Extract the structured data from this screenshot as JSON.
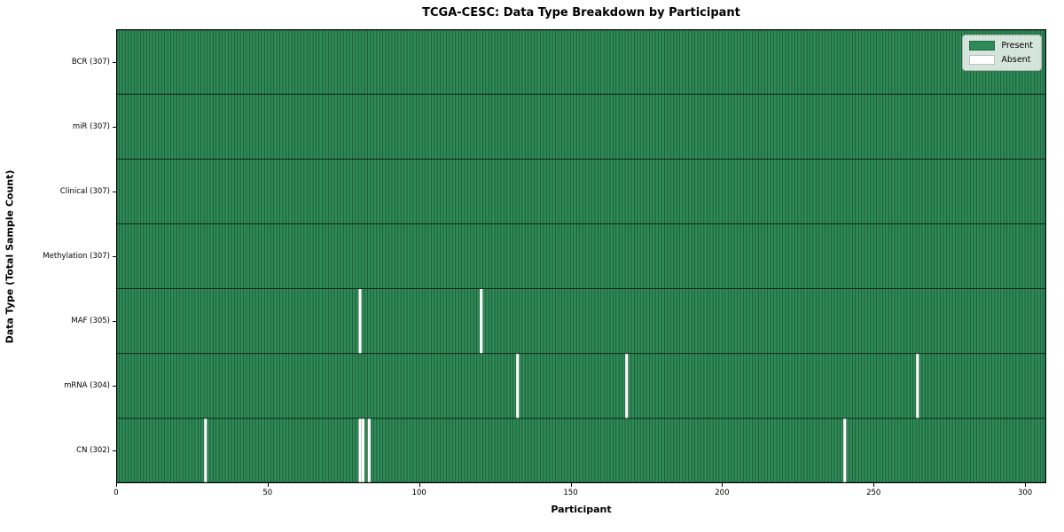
{
  "title": "TCGA-CESC: Data Type Breakdown by Participant",
  "chart_data": {
    "type": "heatmap",
    "title": "TCGA-CESC: Data Type Breakdown by Participant",
    "xlabel": "Participant",
    "ylabel": "Data Type (Total Sample Count)",
    "x_ticks": [
      0,
      50,
      100,
      150,
      200,
      250,
      300
    ],
    "x_range": [
      0,
      307
    ],
    "n_participants": 307,
    "grid": true,
    "legend_position": "upper right",
    "rows": [
      {
        "label": "BCR (307)",
        "data_type": "BCR",
        "present_count": 307,
        "absent_participants": []
      },
      {
        "label": "miR (307)",
        "data_type": "miR",
        "present_count": 307,
        "absent_participants": []
      },
      {
        "label": "Clinical (307)",
        "data_type": "Clinical",
        "present_count": 307,
        "absent_participants": []
      },
      {
        "label": "Methylation (307)",
        "data_type": "Methylation",
        "present_count": 307,
        "absent_participants": []
      },
      {
        "label": "MAF (305)",
        "data_type": "MAF",
        "present_count": 305,
        "absent_participants": [
          80,
          120
        ]
      },
      {
        "label": "mRNA (304)",
        "data_type": "mRNA",
        "present_count": 304,
        "absent_participants": [
          132,
          168,
          264
        ]
      },
      {
        "label": "CN (302)",
        "data_type": "CN",
        "present_count": 302,
        "absent_participants": [
          29,
          80,
          81,
          83,
          240
        ]
      }
    ],
    "legend": [
      {
        "label": "Present",
        "color": "#2e8b57"
      },
      {
        "label": "Absent",
        "color": "#ffffff"
      }
    ],
    "colors": {
      "present": "#2e8b57",
      "absent": "#ffffff",
      "cell_edge": "rgba(0,0,0,0.45)",
      "row_separator": "rgba(0,0,0,0.8)",
      "plot_border": "#000000",
      "legend_border": "#b3b3b3"
    }
  }
}
